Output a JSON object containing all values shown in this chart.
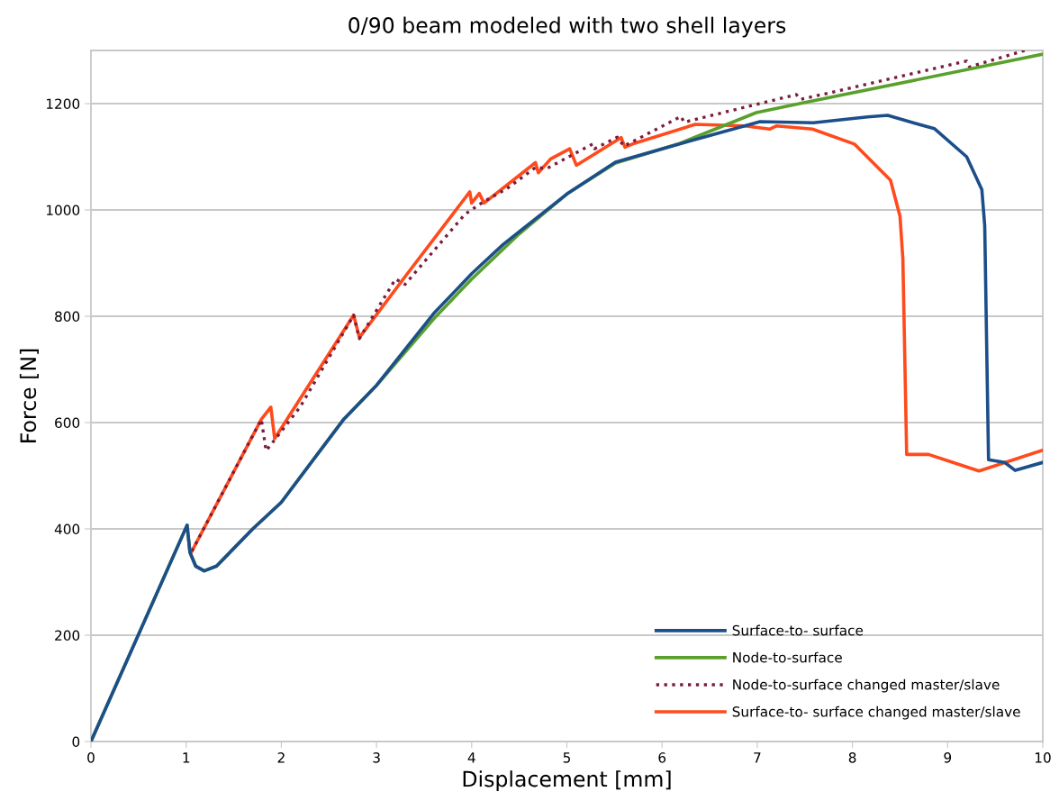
{
  "chart_data": {
    "type": "line",
    "title": "0/90 beam modeled with two shell layers",
    "xlabel": "Displacement [mm]",
    "ylabel": "Force [N]",
    "xlim": [
      0,
      10
    ],
    "xticks": [
      0,
      1,
      2,
      3,
      4,
      5,
      6,
      7,
      8,
      9,
      10
    ],
    "ylim": [
      0,
      1300
    ],
    "yticks": [
      0,
      200,
      400,
      600,
      800,
      1000,
      1200
    ],
    "grid": "y",
    "legend": "bottom right",
    "marker": "none",
    "series": [
      {
        "name": "Surface-to- surface",
        "color": "#1c4f8a",
        "line_style": "solid",
        "x": [
          0,
          1.01,
          1.04,
          1.1,
          1.19,
          1.32,
          1.7,
          2.0,
          2.65,
          3.0,
          3.6,
          4.0,
          4.33,
          5.0,
          5.51,
          6.0,
          7.03,
          7.59,
          8.16,
          8.37,
          8.68,
          8.86,
          9.2,
          9.36,
          9.39,
          9.43,
          9.6,
          9.71,
          10
        ],
        "values": [
          0,
          407,
          356,
          330,
          321,
          330,
          400,
          450,
          605,
          670,
          805,
          880,
          935,
          1030,
          1090,
          1115,
          1166,
          1164,
          1175,
          1178,
          1162,
          1153,
          1100,
          1038,
          970,
          530,
          525,
          510,
          525
        ]
      },
      {
        "name": "Node-to-surface",
        "color": "#5aa02c",
        "line_style": "solid",
        "x": [
          0,
          1.01,
          1.04,
          1.1,
          1.19,
          1.32,
          1.7,
          2.0,
          2.65,
          3.0,
          3.6,
          4.0,
          4.5,
          5.0,
          5.51,
          6.17,
          6.99,
          7.5,
          10
        ],
        "values": [
          0,
          407,
          356,
          330,
          321,
          330,
          400,
          450,
          605,
          670,
          795,
          870,
          955,
          1030,
          1088,
          1124,
          1183,
          1202,
          1293
        ]
      },
      {
        "name": "Node-to-surface changed master/slave",
        "color": "#7b1c3c",
        "line_style": "dotted",
        "x": [
          1.06,
          1.79,
          1.84,
          2.02,
          2.2,
          2.76,
          2.82,
          3.2,
          3.3,
          3.93,
          4.13,
          4.37,
          4.67,
          4.79,
          5.27,
          5.29,
          5.53,
          5.6,
          6.2,
          6.23,
          7.41,
          7.46,
          9.2,
          9.23,
          9.81
        ],
        "values": [
          358,
          606,
          547,
          588,
          630,
          802,
          758,
          870,
          860,
          992,
          1016,
          1040,
          1080,
          1078,
          1124,
          1115,
          1137,
          1120,
          1176,
          1165,
          1217,
          1208,
          1280,
          1269,
          1300
        ]
      },
      {
        "name": "Surface-to- surface changed master/slave",
        "color": "#ff4a1c",
        "line_style": "solid",
        "x": [
          1.06,
          1.79,
          1.89,
          1.93,
          2.76,
          2.82,
          3.29,
          3.98,
          4.0,
          4.08,
          4.13,
          4.67,
          4.7,
          4.83,
          5.03,
          5.1,
          5.57,
          5.61,
          5.69,
          6.35,
          6.87,
          7.13,
          7.2,
          7.58,
          8.02,
          8.4,
          8.5,
          8.53,
          8.57,
          8.8,
          9.33,
          10
        ],
        "values": [
          358,
          606,
          629,
          570,
          802,
          760,
          872,
          1034,
          1013,
          1031,
          1013,
          1089,
          1070,
          1096,
          1115,
          1084,
          1136,
          1118,
          1124,
          1161,
          1158,
          1152,
          1158,
          1152,
          1124,
          1056,
          988,
          908,
          540,
          540,
          509,
          548
        ]
      }
    ]
  }
}
